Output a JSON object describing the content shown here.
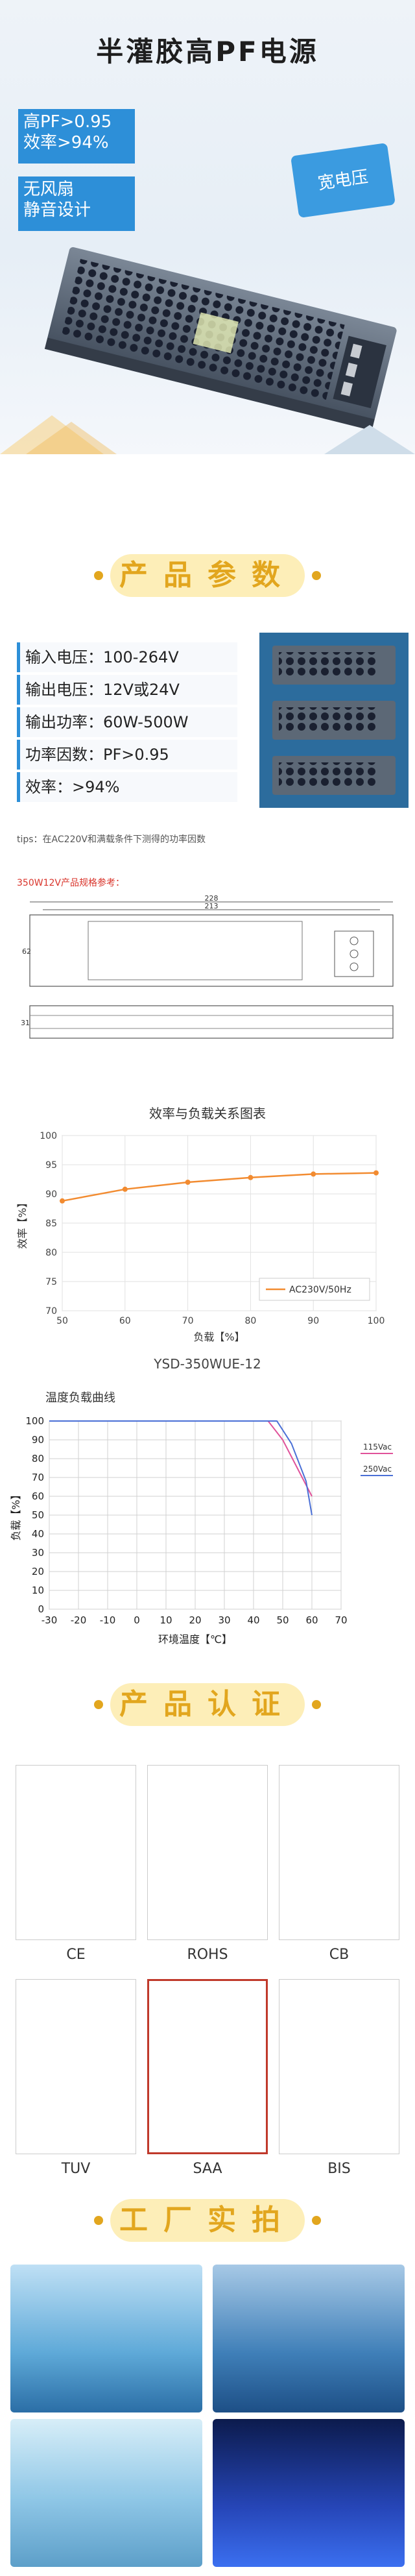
{
  "hero": {
    "title": "半灌胶高PF电源",
    "tag1_line1": "高PF>0.95",
    "tag1_line2": "效率>94%",
    "tag2_line1": "无风扇",
    "tag2_line2": "静音设计",
    "bubble": "宽电压"
  },
  "sections": {
    "params_heading": "产品参数",
    "cert_heading": "产品认证",
    "factory_heading": "工厂实拍"
  },
  "params": {
    "rows": [
      "输入电压：100-264V",
      "输出电压：12V或24V",
      "输出功率：60W-500W",
      "功率因数：PF>0.95",
      "效率：>94%"
    ],
    "tips": "tips：在AC220V和满载条件下测得的功率因数",
    "drawing_note": "350W12V产品规格参考："
  },
  "drawing": {
    "dim_total": "228",
    "dim_inner": "213",
    "dim_height": "62",
    "dim_depth": "31"
  },
  "efficiency_chart": {
    "title": "效率与负载关系图表",
    "model": "YSD-350WUE-12"
  },
  "derating_chart": {
    "title": "温度负载曲线"
  },
  "chart_data": [
    {
      "type": "line",
      "title": "效率与负载关系图表",
      "xlabel": "负载【%】",
      "ylabel": "效率【%】",
      "x": [
        50,
        60,
        70,
        80,
        90,
        100
      ],
      "xlim": [
        50,
        100
      ],
      "ylim": [
        70,
        100
      ],
      "yticks": [
        70,
        75,
        80,
        85,
        90,
        95,
        100
      ],
      "series": [
        {
          "name": "AC230V/50Hz",
          "values": [
            88.8,
            90.8,
            92.0,
            92.8,
            93.4,
            93.6
          ],
          "color": "#f28b30"
        }
      ],
      "legend": "bottom-right",
      "grid": true
    },
    {
      "type": "line",
      "title": "温度负载曲线",
      "xlabel": "环境温度【℃】",
      "ylabel": "负载【%】",
      "x_ticks": [
        -30,
        -20,
        -10,
        0,
        10,
        20,
        30,
        40,
        50,
        60,
        70
      ],
      "xlim": [
        -30,
        70
      ],
      "ylim": [
        0,
        100
      ],
      "yticks": [
        0,
        10,
        20,
        30,
        40,
        50,
        60,
        70,
        80,
        90,
        100
      ],
      "series": [
        {
          "name": "115Vac",
          "x": [
            -30,
            45,
            50,
            55,
            60
          ],
          "values": [
            100,
            100,
            90,
            75,
            60
          ],
          "color": "#e0529a"
        },
        {
          "name": "250Vac",
          "x": [
            -30,
            48,
            53,
            58,
            60
          ],
          "values": [
            100,
            100,
            88,
            68,
            50
          ],
          "color": "#4a6fd6"
        }
      ],
      "legend": "right",
      "grid": true
    }
  ],
  "certs": [
    {
      "label": "CE"
    },
    {
      "label": "ROHS"
    },
    {
      "label": "CB"
    },
    {
      "label": "TUV"
    },
    {
      "label": "SAA"
    },
    {
      "label": "BIS"
    }
  ],
  "colors": {
    "accent": "#2d8fd8",
    "gold": "#e2a61e",
    "red": "#d9342b"
  }
}
